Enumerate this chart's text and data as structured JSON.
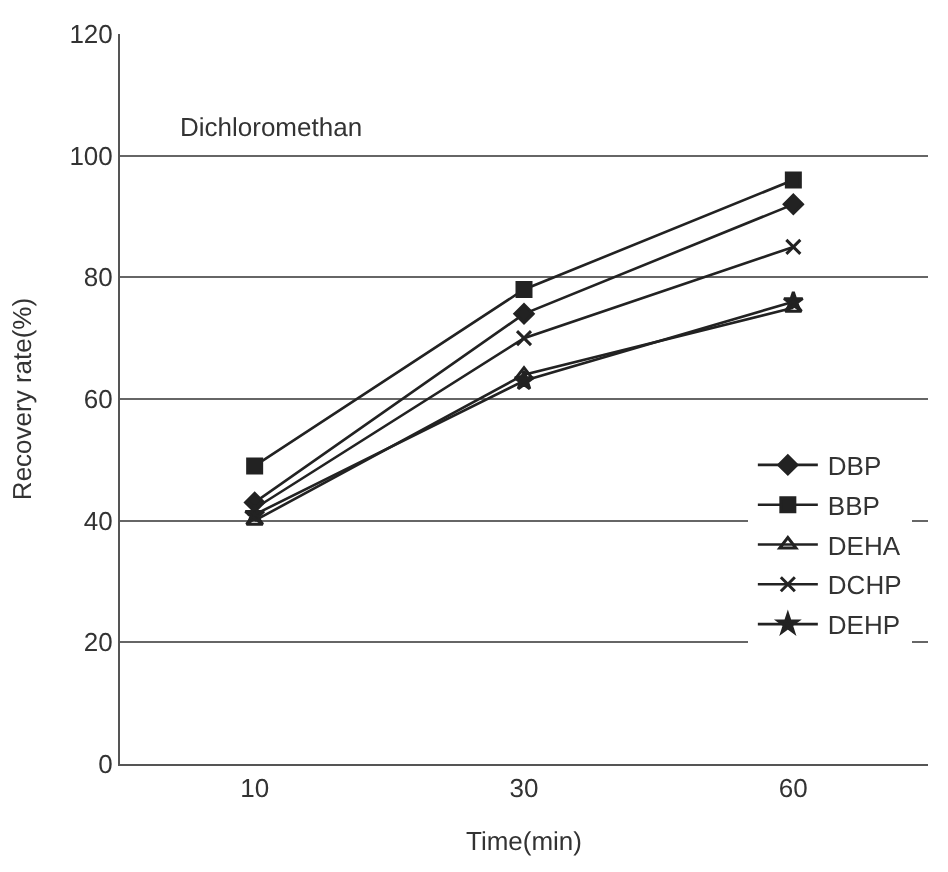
{
  "chart_data": {
    "type": "line",
    "annotations": [
      "Dichloromethan"
    ],
    "xlabel": "Time(min)",
    "ylabel": "Recovery rate(%)",
    "categories": [
      "10",
      "30",
      "60"
    ],
    "ylim": [
      0,
      120
    ],
    "yticks": [
      0,
      20,
      40,
      60,
      80,
      100,
      120
    ],
    "grid": "y",
    "legend": "right",
    "series": [
      {
        "name": "DBP",
        "color": "#222222",
        "marker": "diamond",
        "values": [
          43,
          74,
          92
        ]
      },
      {
        "name": "BBP",
        "color": "#222222",
        "marker": "square",
        "values": [
          49,
          78,
          96
        ]
      },
      {
        "name": "DEHA",
        "color": "#222222",
        "marker": "triangle",
        "values": [
          40,
          64,
          75
        ]
      },
      {
        "name": "DCHP",
        "color": "#222222",
        "marker": "cross",
        "values": [
          42,
          70,
          85
        ]
      },
      {
        "name": "DEHP",
        "color": "#222222",
        "marker": "star",
        "values": [
          41,
          63,
          76
        ]
      }
    ]
  }
}
